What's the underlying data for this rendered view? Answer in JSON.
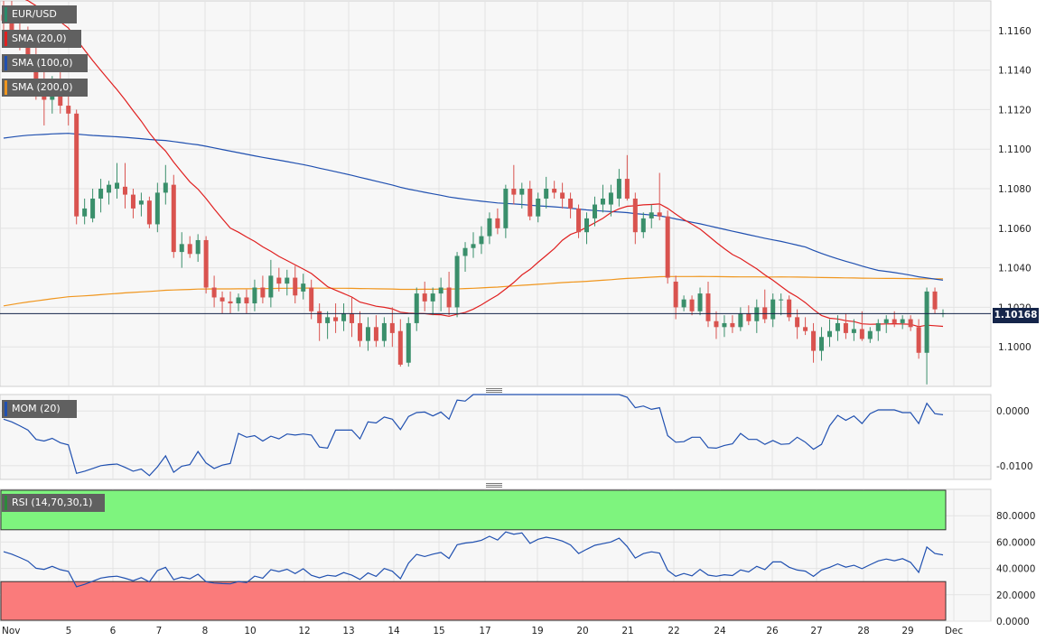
{
  "chart_data": [
    {
      "type": "candlestick",
      "symbol": "EUR/USD",
      "indicators": [
        {
          "name": "SMA (20,0)",
          "color": "#e02020"
        },
        {
          "name": "SMA (100,0)",
          "color": "#2050b0"
        },
        {
          "name": "SMA (200,0)",
          "color": "#f0961e"
        }
      ],
      "current_price": "1.10168",
      "ylim": [
        1.098,
        1.1175
      ],
      "yticks": [
        "1.1160",
        "1.1140",
        "1.1120",
        "1.1100",
        "1.1080",
        "1.1060",
        "1.1040",
        "1.1020",
        "1.1000"
      ],
      "x_labels": [
        "Nov",
        "5",
        "6",
        "7",
        "8",
        "10",
        "12",
        "13",
        "14",
        "15",
        "17",
        "19",
        "20",
        "21",
        "22",
        "24",
        "26",
        "27",
        "28",
        "29",
        "Dec"
      ],
      "candles": [
        [
          1.1168,
          1.1175,
          1.116,
          1.1165
        ],
        [
          1.1165,
          1.1175,
          1.1155,
          1.116
        ],
        [
          1.116,
          1.117,
          1.115,
          1.1153
        ],
        [
          1.1153,
          1.1162,
          1.114,
          1.1145
        ],
        [
          1.1145,
          1.1155,
          1.1125,
          1.1128
        ],
        [
          1.1128,
          1.114,
          1.1112,
          1.1125
        ],
        [
          1.1125,
          1.1137,
          1.1118,
          1.113
        ],
        [
          1.1132,
          1.114,
          1.1118,
          1.1122
        ],
        [
          1.1122,
          1.1128,
          1.1112,
          1.1118
        ],
        [
          1.1118,
          1.112,
          1.1062,
          1.1066
        ],
        [
          1.1066,
          1.1075,
          1.1062,
          1.107
        ],
        [
          1.1065,
          1.108,
          1.1063,
          1.1075
        ],
        [
          1.1075,
          1.1085,
          1.1068,
          1.108
        ],
        [
          1.1078,
          1.1084,
          1.1072,
          1.1082
        ],
        [
          1.108,
          1.1093,
          1.1075,
          1.1083
        ],
        [
          1.1081,
          1.1093,
          1.107,
          1.1077
        ],
        [
          1.1077,
          1.108,
          1.1065,
          1.107
        ],
        [
          1.1072,
          1.1078,
          1.1066,
          1.1074
        ],
        [
          1.1074,
          1.1076,
          1.106,
          1.1062
        ],
        [
          1.1062,
          1.1083,
          1.1058,
          1.1078
        ],
        [
          1.1078,
          1.1092,
          1.1072,
          1.1083
        ],
        [
          1.1082,
          1.1087,
          1.1045,
          1.1048
        ],
        [
          1.1048,
          1.1058,
          1.104,
          1.1052
        ],
        [
          1.1052,
          1.1056,
          1.1045,
          1.1047
        ],
        [
          1.1047,
          1.1057,
          1.1043,
          1.1054
        ],
        [
          1.1054,
          1.1056,
          1.1027,
          1.103
        ],
        [
          1.103,
          1.1036,
          1.102,
          1.1025
        ],
        [
          1.1025,
          1.1028,
          1.1017,
          1.1023
        ],
        [
          1.1023,
          1.1028,
          1.1017,
          1.1022
        ],
        [
          1.1022,
          1.1027,
          1.1018,
          1.1025
        ],
        [
          1.1025,
          1.1029,
          1.1017,
          1.1022
        ],
        [
          1.1022,
          1.1034,
          1.1018,
          1.103
        ],
        [
          1.103,
          1.1036,
          1.1022,
          1.1025
        ],
        [
          1.1025,
          1.1044,
          1.102,
          1.1036
        ],
        [
          1.1035,
          1.104,
          1.1028,
          1.1032
        ],
        [
          1.1032,
          1.1039,
          1.1026,
          1.1035
        ],
        [
          1.1035,
          1.1041,
          1.1022,
          1.1026
        ],
        [
          1.1028,
          1.1037,
          1.1024,
          1.1032
        ],
        [
          1.103,
          1.1034,
          1.1014,
          1.1018
        ],
        [
          1.1018,
          1.1022,
          1.1003,
          1.1012
        ],
        [
          1.1012,
          1.1018,
          1.1004,
          1.1015
        ],
        [
          1.1015,
          1.1022,
          1.1007,
          1.1013
        ],
        [
          1.1013,
          1.1022,
          1.1008,
          1.1017
        ],
        [
          1.1017,
          1.1025,
          1.1005,
          1.1012
        ],
        [
          1.1012,
          1.1018,
          1.1,
          1.1003
        ],
        [
          1.1003,
          1.1015,
          1.0998,
          1.101
        ],
        [
          1.101,
          1.1016,
          1.1,
          1.1003
        ],
        [
          1.1003,
          1.1015,
          1.1,
          1.1012
        ],
        [
          1.1012,
          1.102,
          1.1,
          1.1007
        ],
        [
          1.1008,
          1.1014,
          1.099,
          1.0991
        ],
        [
          1.0992,
          1.1015,
          1.099,
          1.1012
        ],
        [
          1.1012,
          1.103,
          1.1008,
          1.1027
        ],
        [
          1.1027,
          1.1033,
          1.1018,
          1.1023
        ],
        [
          1.1023,
          1.103,
          1.1016,
          1.1027
        ],
        [
          1.1027,
          1.1035,
          1.1018,
          1.103
        ],
        [
          1.103,
          1.1038,
          1.1016,
          1.102
        ],
        [
          1.102,
          1.1048,
          1.1015,
          1.1046
        ],
        [
          1.1046,
          1.1053,
          1.1038,
          1.105
        ],
        [
          1.105,
          1.1058,
          1.1045,
          1.1052
        ],
        [
          1.1052,
          1.1061,
          1.1047,
          1.1056
        ],
        [
          1.1056,
          1.1068,
          1.1052,
          1.1065
        ],
        [
          1.1065,
          1.107,
          1.1057,
          1.106
        ],
        [
          1.106,
          1.1082,
          1.1055,
          1.108
        ],
        [
          1.108,
          1.1092,
          1.1072,
          1.1077
        ],
        [
          1.1077,
          1.1083,
          1.107,
          1.108
        ],
        [
          1.108,
          1.1084,
          1.1064,
          1.1066
        ],
        [
          1.1066,
          1.1078,
          1.1063,
          1.1075
        ],
        [
          1.1075,
          1.1086,
          1.107,
          1.108
        ],
        [
          1.108,
          1.1084,
          1.1075,
          1.1078
        ],
        [
          1.1078,
          1.1083,
          1.107,
          1.1075
        ],
        [
          1.1075,
          1.1078,
          1.1065,
          1.107
        ],
        [
          1.107,
          1.1072,
          1.1055,
          1.1058
        ],
        [
          1.1058,
          1.1068,
          1.1052,
          1.1065
        ],
        [
          1.1065,
          1.1076,
          1.1061,
          1.1072
        ],
        [
          1.1072,
          1.1082,
          1.1068,
          1.1075
        ],
        [
          1.1072,
          1.1082,
          1.1066,
          1.1078
        ],
        [
          1.1075,
          1.109,
          1.1071,
          1.1085
        ],
        [
          1.1085,
          1.1097,
          1.1074,
          1.1075
        ],
        [
          1.1075,
          1.1078,
          1.1052,
          1.1058
        ],
        [
          1.1058,
          1.1068,
          1.1055,
          1.1065
        ],
        [
          1.1065,
          1.1072,
          1.106,
          1.1068
        ],
        [
          1.1068,
          1.1088,
          1.1064,
          1.1066
        ],
        [
          1.1066,
          1.1069,
          1.1032,
          1.1035
        ],
        [
          1.1033,
          1.1036,
          1.1014,
          1.102
        ],
        [
          1.102,
          1.1026,
          1.1018,
          1.1024
        ],
        [
          1.1024,
          1.1026,
          1.1016,
          1.1018
        ],
        [
          1.1018,
          1.103,
          1.1016,
          1.1027
        ],
        [
          1.1027,
          1.1033,
          1.101,
          1.1013
        ],
        [
          1.1013,
          1.1018,
          1.1004,
          1.101
        ],
        [
          1.101,
          1.1016,
          1.1005,
          1.1012
        ],
        [
          1.1012,
          1.1016,
          1.1007,
          1.101
        ],
        [
          1.101,
          1.102,
          1.1008,
          1.1017
        ],
        [
          1.1017,
          1.1021,
          1.1011,
          1.1013
        ],
        [
          1.1013,
          1.1024,
          1.1007,
          1.102
        ],
        [
          1.102,
          1.1029,
          1.1012,
          1.1014
        ],
        [
          1.1014,
          1.1027,
          1.101,
          1.1024
        ],
        [
          1.1024,
          1.1027,
          1.1016,
          1.1024
        ],
        [
          1.1024,
          1.1026,
          1.1013,
          1.1015
        ],
        [
          1.1015,
          1.1019,
          1.1004,
          1.101
        ],
        [
          1.101,
          1.1015,
          1.1006,
          1.1008
        ],
        [
          1.1008,
          1.1012,
          1.0992,
          1.0998
        ],
        [
          1.0998,
          1.101,
          1.0993,
          1.1005
        ],
        [
          1.1005,
          1.1014,
          1.1,
          1.1008
        ],
        [
          1.1008,
          1.1016,
          1.1003,
          1.1012
        ],
        [
          1.1012,
          1.1017,
          1.1004,
          1.1007
        ],
        [
          1.1007,
          1.1014,
          1.1003,
          1.1009
        ],
        [
          1.1009,
          1.1018,
          1.1003,
          1.1004
        ],
        [
          1.1004,
          1.101,
          1.1002,
          1.1008
        ],
        [
          1.1008,
          1.1014,
          1.1003,
          1.1012
        ],
        [
          1.1012,
          1.1016,
          1.1007,
          1.1014
        ],
        [
          1.1014,
          1.1018,
          1.101,
          1.1012
        ],
        [
          1.1012,
          1.1016,
          1.1009,
          1.1014
        ],
        [
          1.1014,
          1.1016,
          1.1008,
          1.101
        ],
        [
          1.101,
          1.1014,
          1.0994,
          1.0997
        ],
        [
          1.0997,
          1.103,
          1.0981,
          1.1028
        ],
        [
          1.1028,
          1.103,
          1.1017,
          1.1019
        ],
        [
          1.1017,
          1.1019,
          1.1015,
          1.1017
        ]
      ]
    },
    {
      "type": "line",
      "title": "MOM (20)",
      "yticks": [
        "0.0000",
        "-0.0100"
      ],
      "ylim": [
        -0.0125,
        0.003
      ]
    },
    {
      "type": "line",
      "title": "RSI (14,70,30,1)",
      "yticks": [
        "80.0000",
        "60.0000",
        "40.0000",
        "20.0000",
        "0.0000"
      ],
      "ylim": [
        0,
        100
      ],
      "overbought": 70,
      "oversold": 30
    }
  ]
}
